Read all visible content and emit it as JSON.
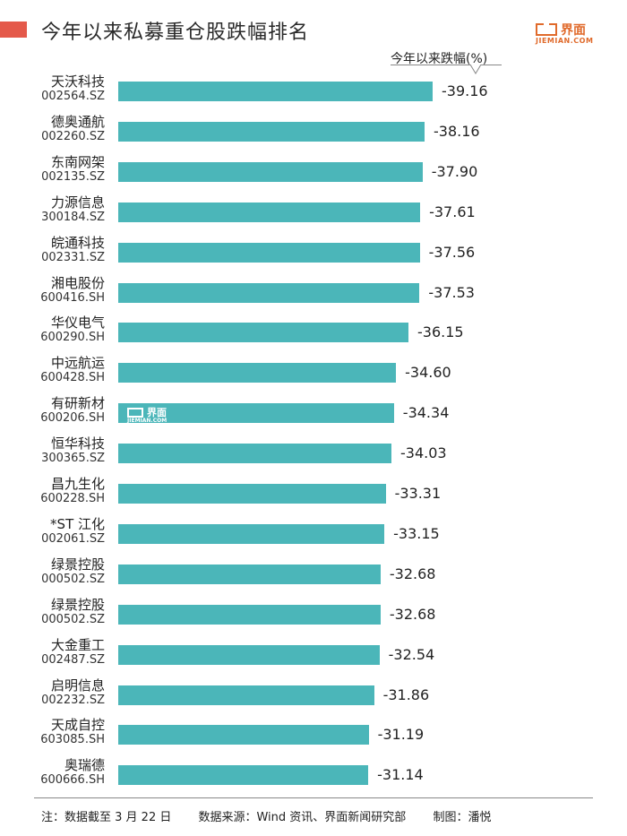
{
  "title": "今年以来私募重仓股跌幅排名",
  "logo": {
    "brand": "界面",
    "sub": "JIEMIAN.COM"
  },
  "colors": {
    "accent": "#e4594a",
    "bar": "#4bb6b9",
    "logo": "#e06a2b"
  },
  "chart_data": {
    "type": "bar",
    "orientation": "horizontal",
    "unit_label": "今年以来跌幅(%)",
    "categories": [
      {
        "name": "天沃科技",
        "code": "002564.SZ"
      },
      {
        "name": "德奥通航",
        "code": "002260.SZ"
      },
      {
        "name": "东南网架",
        "code": "002135.SZ"
      },
      {
        "name": "力源信息",
        "code": "300184.SZ"
      },
      {
        "name": "皖通科技",
        "code": "002331.SZ"
      },
      {
        "name": "湘电股份",
        "code": "600416.SH"
      },
      {
        "name": "华仪电气",
        "code": "600290.SH"
      },
      {
        "name": "中远航运",
        "code": "600428.SH"
      },
      {
        "name": "有研新材",
        "code": "600206.SH"
      },
      {
        "name": "恒华科技",
        "code": "300365.SZ"
      },
      {
        "name": "昌九生化",
        "code": "600228.SH"
      },
      {
        "name": "*ST 江化",
        "code": "002061.SZ"
      },
      {
        "name": "绿景控股",
        "code": "000502.SZ"
      },
      {
        "name": "绿景控股",
        "code": "000502.SZ"
      },
      {
        "name": "大金重工",
        "code": "002487.SZ"
      },
      {
        "name": "启明信息",
        "code": "002232.SZ"
      },
      {
        "name": "天成自控",
        "code": "603085.SH"
      },
      {
        "name": "奥瑞德",
        "code": "600666.SH"
      }
    ],
    "values": [
      -39.16,
      -38.16,
      -37.9,
      -37.61,
      -37.56,
      -37.53,
      -36.15,
      -34.6,
      -34.34,
      -34.03,
      -33.31,
      -33.15,
      -32.68,
      -32.68,
      -32.54,
      -31.86,
      -31.19,
      -31.14
    ],
    "value_labels": [
      "-39.16",
      "-38.16",
      "-37.90",
      "-37.61",
      "-37.56",
      "-37.53",
      "-36.15",
      "-34.60",
      "-34.34",
      "-34.03",
      "-33.31",
      "-33.15",
      "-32.68",
      "-32.68",
      "-32.54",
      "-31.86",
      "-31.19",
      "-31.14"
    ]
  },
  "footer": {
    "note": "注：数据截至 3 月 22 日",
    "source": "数据来源：Wind 资讯、界面新闻研究部",
    "author": "制图：潘悦"
  }
}
